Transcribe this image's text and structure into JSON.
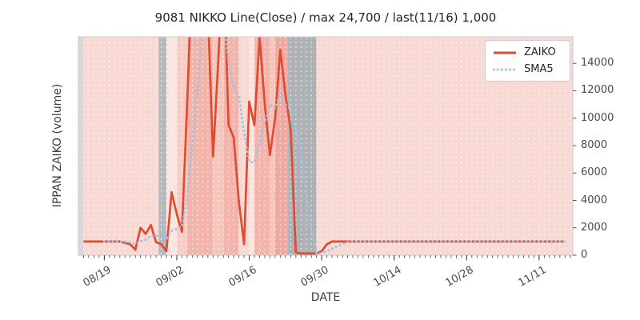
{
  "title": "9081 NIKKO Line(Close) / max 24,700 / last(11/16) 1,000",
  "axes": {
    "x_label": "DATE",
    "y_label": "IPPAN ZAIKO (volume)"
  },
  "legend": {
    "entries": [
      {
        "label": "ZAIKO",
        "color": "#df4c30",
        "style": "solid"
      },
      {
        "label": "SMA5",
        "color": "#9ec2e0",
        "style": "dotted"
      }
    ]
  },
  "chart_data": {
    "type": "line",
    "title": "9081 NIKKO Line(Close) / max 24,700 / last(11/16) 1,000",
    "xlabel": "DATE",
    "ylabel": "IPPAN ZAIKO (volume)",
    "frequency": "daily",
    "x_domain_days": 95.5,
    "x_domain_start_date": "08/14",
    "data_start_day": 1,
    "points_start_date": "08/15",
    "points_end_date": "11/16",
    "ylim": [
      0,
      15937
    ],
    "grid": "vertical-white-dashed-per-day",
    "legend_position": "upper right",
    "max_value": 24700,
    "last_point": {
      "date": "11/16",
      "value": 1000
    },
    "y_ticks": [
      {
        "label": "0",
        "value": 0
      },
      {
        "label": "2000",
        "value": 2000
      },
      {
        "label": "4000",
        "value": 4000
      },
      {
        "label": "6000",
        "value": 6000
      },
      {
        "label": "8000",
        "value": 8000
      },
      {
        "label": "10000",
        "value": 10000
      },
      {
        "label": "12000",
        "value": 12000
      },
      {
        "label": "14000",
        "value": 14000
      }
    ],
    "x_major_ticks": [
      {
        "label": "08/19",
        "day": 5
      },
      {
        "label": "09/02",
        "day": 19
      },
      {
        "label": "09/16",
        "day": 33
      },
      {
        "label": "09/30",
        "day": 47
      },
      {
        "label": "10/14",
        "day": 61
      },
      {
        "label": "10/28",
        "day": 75
      },
      {
        "label": "11/11",
        "day": 89
      }
    ],
    "bands": [
      {
        "from_day": 0,
        "to_day": 1,
        "color": "#d8d8d8"
      },
      {
        "from_day": 1,
        "to_day": 15.5,
        "color": "#f9d9d3"
      },
      {
        "from_day": 15.5,
        "to_day": 17,
        "color": "#b6b9bc"
      },
      {
        "from_day": 17,
        "to_day": 19,
        "color": "#fbe5e0"
      },
      {
        "from_day": 19,
        "to_day": 21,
        "color": "#f7cdc5"
      },
      {
        "from_day": 21,
        "to_day": 26,
        "color": "#f3b4ac"
      },
      {
        "from_day": 26,
        "to_day": 28,
        "color": "#f6c6bd"
      },
      {
        "from_day": 28,
        "to_day": 31,
        "color": "#f3b4ac"
      },
      {
        "from_day": 31,
        "to_day": 33,
        "color": "#f9d9d3"
      },
      {
        "from_day": 33,
        "to_day": 34,
        "color": "#fbe5e0"
      },
      {
        "from_day": 34,
        "to_day": 37,
        "color": "#f3b4ac"
      },
      {
        "from_day": 37,
        "to_day": 38,
        "color": "#f6c6bd"
      },
      {
        "from_day": 38,
        "to_day": 40.5,
        "color": "#f0a9a1"
      },
      {
        "from_day": 40.5,
        "to_day": 46,
        "color": "#aeb1b6"
      },
      {
        "from_day": 46,
        "to_day": 95.5,
        "color": "#f9d9d3"
      }
    ],
    "series": [
      {
        "name": "ZAIKO",
        "color": "#df4c30",
        "style": "solid",
        "values": [
          1000,
          1000,
          1000,
          1000,
          1000,
          1000,
          1000,
          1000,
          900,
          800,
          400,
          2000,
          1550,
          2200,
          950,
          800,
          300,
          4600,
          3000,
          1700,
          11000,
          21000,
          24000,
          24700,
          18000,
          7200,
          14000,
          22000,
          9500,
          8600,
          3900,
          800,
          11200,
          9500,
          15900,
          11000,
          7300,
          10000,
          15000,
          11700,
          9200,
          200,
          120,
          120,
          120,
          130,
          300,
          800,
          1000,
          1000,
          1000,
          1000,
          1000,
          1000,
          1000,
          1000,
          1000,
          1000,
          1000,
          1000,
          1000,
          1000,
          1000,
          1000,
          1000,
          1000,
          1000,
          1000,
          1000,
          1000,
          1000,
          1000,
          1000,
          1000,
          1000,
          1000,
          1000,
          1000,
          1000,
          1000,
          1000,
          1000,
          1000,
          1000,
          1000,
          1000,
          1000,
          1000,
          1000,
          1000,
          1000,
          1000,
          1000,
          1000
        ]
      },
      {
        "name": "SMA5",
        "color": "#9ec2e0",
        "style": "dotted",
        "derived": "5-day trailing moving average of ZAIKO"
      }
    ]
  }
}
